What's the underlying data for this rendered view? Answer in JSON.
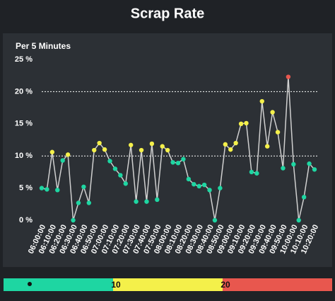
{
  "chart_data": {
    "type": "line",
    "title": "Scrap Rate",
    "subtitle": "Per 5 Minutes",
    "categories": [
      "06:00:00",
      null,
      "06:10:00",
      null,
      "06:20:00",
      null,
      "06:30:00",
      null,
      "06:40:00",
      null,
      "06:50:00",
      null,
      "07:00:00",
      null,
      "07:10:00",
      null,
      "07:20:00",
      null,
      "07:30:00",
      null,
      "07:40:00",
      null,
      "07:50:00",
      null,
      "08:00:00",
      null,
      "08:10:00",
      null,
      "08:20:00",
      null,
      "08:30:00",
      null,
      "08:40:00",
      null,
      "08:50:00",
      null,
      "09:00:00",
      null,
      "09:10:00",
      null,
      "09:20:00",
      null,
      "09:30:00",
      null,
      "09:40:00",
      null,
      "09:50:00",
      null,
      "10:00:00",
      null,
      "10:10:00",
      null,
      "10:20:00"
    ],
    "values": [
      5.0,
      4.8,
      10.6,
      4.7,
      9.3,
      10.2,
      0,
      2.7,
      5.2,
      2.7,
      10.9,
      12.0,
      11.0,
      9.2,
      8.0,
      7.0,
      5.7,
      11.7,
      2.9,
      10.9,
      2.9,
      11.9,
      3.2,
      11.5,
      10.9,
      9.0,
      8.9,
      9.5,
      6.4,
      5.6,
      5.3,
      5.5,
      4.7,
      0,
      5.0,
      11.8,
      11.0,
      12.0,
      15.0,
      15.1,
      7.5,
      7.3,
      18.5,
      11.5,
      16.8,
      13.7,
      8.1,
      22.3,
      8.7,
      0,
      3.6,
      8.8,
      7.9
    ],
    "color": "#d0d0d0",
    "ylim": [
      0,
      25
    ],
    "yticks": [
      {
        "value": 0,
        "label": "0 %"
      },
      {
        "value": 5,
        "label": "5 %"
      },
      {
        "value": 10,
        "label": "10 %"
      },
      {
        "value": 15,
        "label": "15 %"
      },
      {
        "value": 20,
        "label": "20 %"
      },
      {
        "value": 25,
        "label": "25 %"
      }
    ],
    "thresholds": [
      10,
      20
    ],
    "threshold_colors": [
      "#1ed6a2",
      "#f4f04a",
      "#e8574e"
    ],
    "colorbar_lim": [
      0,
      30
    ]
  }
}
